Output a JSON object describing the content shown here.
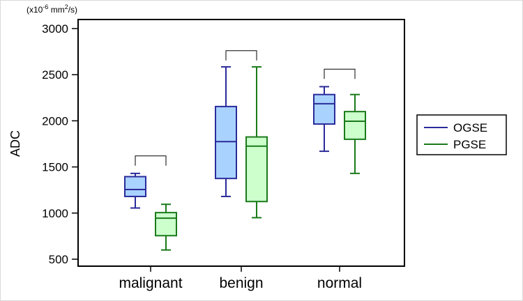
{
  "chart_data": {
    "type": "boxplot",
    "title": "",
    "ylabel": "ADC",
    "unit_prefix": "(x10",
    "unit_exp": "-6",
    "unit_mid": " mm",
    "unit_sq": "2",
    "unit_suffix": "/s)",
    "ylim": [
      400,
      3100
    ],
    "yticks": [
      500,
      1000,
      1500,
      2000,
      2500,
      3000
    ],
    "categories": [
      "malignant",
      "benign",
      "normal"
    ],
    "series": [
      {
        "name": "OGSE",
        "stroke": "#2b2b9a",
        "fill": "#a9d2ff",
        "boxes": [
          {
            "min": 1055,
            "q1": 1180,
            "median": 1255,
            "q3": 1395,
            "max": 1430
          },
          {
            "min": 1180,
            "q1": 1375,
            "median": 1775,
            "q3": 2155,
            "max": 2585
          },
          {
            "min": 1670,
            "q1": 1965,
            "median": 2185,
            "q3": 2285,
            "max": 2370
          }
        ]
      },
      {
        "name": "PGSE",
        "stroke": "#1a7a1a",
        "fill": "#ccffcc",
        "boxes": [
          {
            "min": 600,
            "q1": 755,
            "median": 945,
            "q3": 1005,
            "max": 1095
          },
          {
            "min": 950,
            "q1": 1125,
            "median": 1725,
            "q3": 1825,
            "max": 2585
          },
          {
            "min": 1430,
            "q1": 1800,
            "median": 1995,
            "q3": 2100,
            "max": 2285
          }
        ]
      }
    ],
    "brackets": [
      {
        "category": "malignant",
        "y": 1620
      },
      {
        "category": "benign",
        "y": 2760
      },
      {
        "category": "normal",
        "y": 2560
      }
    ],
    "legend": {
      "position": "right",
      "entries": [
        "OGSE",
        "PGSE"
      ]
    },
    "grid": false
  }
}
